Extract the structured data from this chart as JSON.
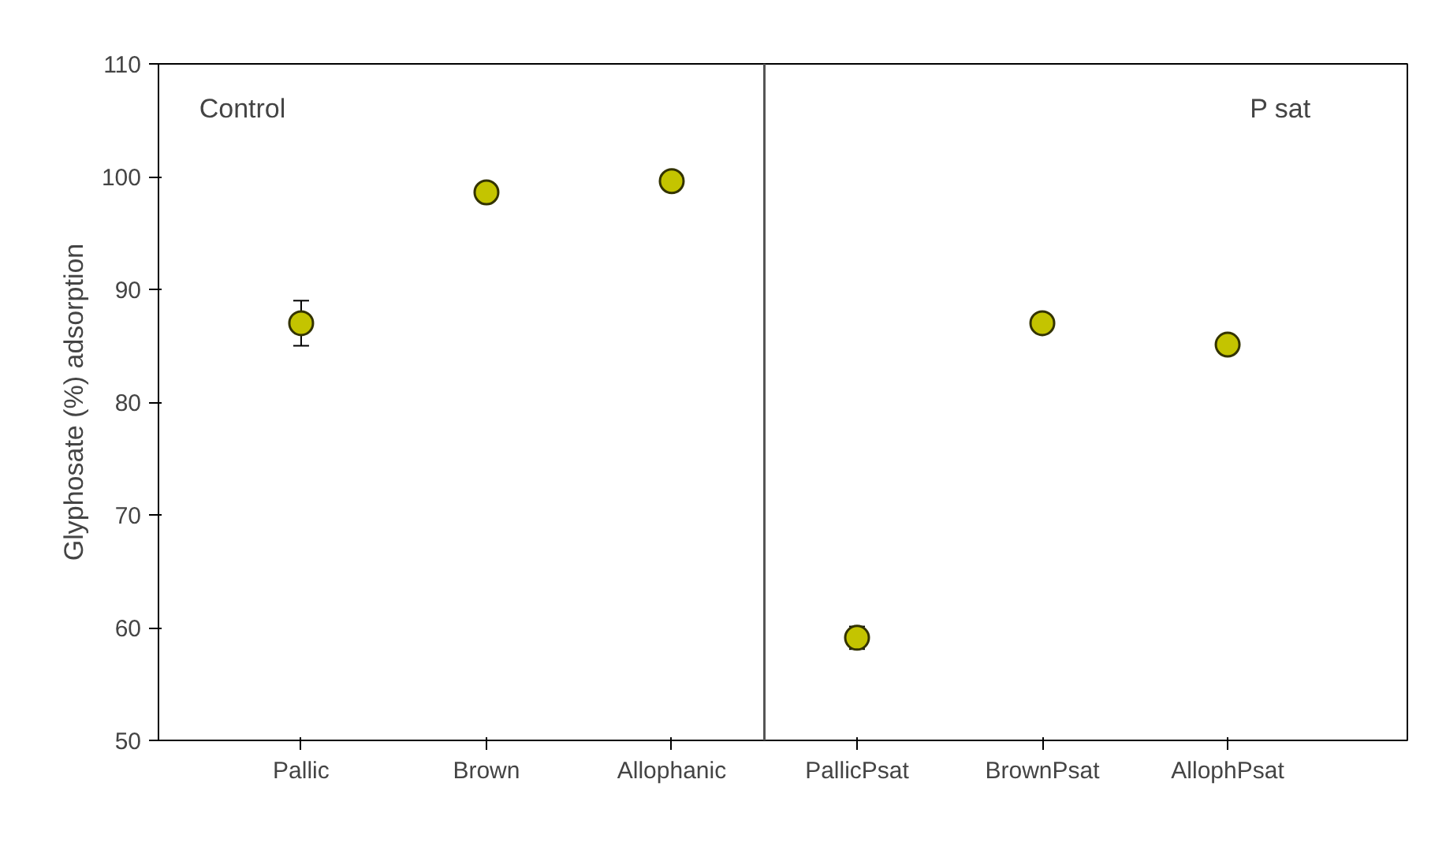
{
  "chart_data": {
    "type": "scatter",
    "ylabel": "Glyphosate (%) adsorption",
    "categories": [
      "Pallic",
      "Brown",
      "Allophanic",
      "PallicPsat",
      "BrownPsat",
      "AllophPsat"
    ],
    "values": [
      87,
      98.6,
      99.6,
      59.1,
      87,
      85.1
    ],
    "errors": [
      2,
      null,
      null,
      1,
      null,
      null
    ],
    "color": "#c4c400",
    "marker": "circle",
    "ylim": [
      50,
      110
    ],
    "yticks": [
      50,
      60,
      70,
      80,
      90,
      100,
      110
    ],
    "grid": false,
    "annotations": [
      "Control",
      "P sat"
    ]
  }
}
